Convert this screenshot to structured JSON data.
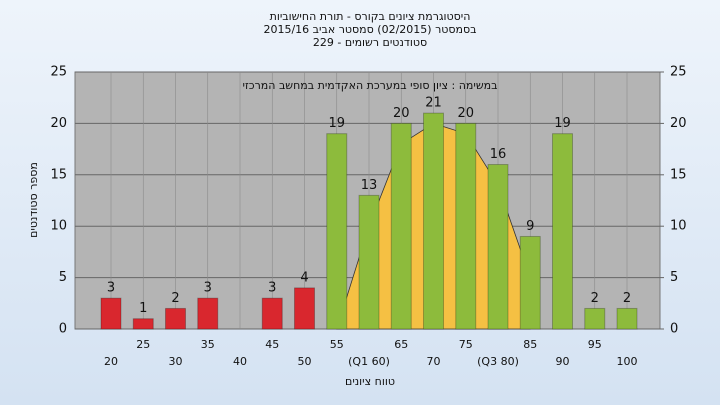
{
  "chart_data": {
    "type": "bar",
    "title": "היסטוגרמת ציונים בקורס - תורת החישוביות",
    "subtitle": "בסמסטר (02/2015) סמסטר אביב 2015/16",
    "subtitle2": "סטודנטים רשומים - 229",
    "annotation": "במשימה : ציון סופי במערכת האקדמית במחשב המרכזי",
    "y_label": "מספר סטודנטים",
    "x_label": "טווח ציונים",
    "categories": [
      "20",
      "25",
      "30",
      "35",
      "40",
      "45",
      "50",
      "55",
      "(Q1 60)",
      "65",
      "70",
      "75",
      "(Q3 80)",
      "85",
      "90",
      "95",
      "100"
    ],
    "values": [
      3,
      1,
      2,
      3,
      0,
      3,
      4,
      19,
      13,
      20,
      21,
      20,
      16,
      9,
      19,
      2,
      2
    ],
    "bar_colors": [
      "#d9272e",
      "#d9272e",
      "#d9272e",
      "#d9272e",
      "#d9272e",
      "#d9272e",
      "#d9272e",
      "#8dbb3c",
      "#8dbb3c",
      "#8dbb3c",
      "#8dbb3c",
      "#8dbb3c",
      "#8dbb3c",
      "#8dbb3c",
      "#8dbb3c",
      "#8dbb3c",
      "#8dbb3c"
    ],
    "area": {
      "color": "#f5c043",
      "values": [
        null,
        null,
        null,
        null,
        null,
        null,
        null,
        0,
        10,
        18,
        20,
        19,
        14,
        5,
        null,
        null,
        null
      ]
    },
    "ylim": [
      0,
      25
    ],
    "yticks": [
      0,
      5,
      10,
      15,
      20,
      25
    ],
    "y2lim": [
      0,
      25
    ],
    "y2ticks": [
      0,
      5,
      10,
      15,
      20,
      25
    ],
    "grid": true
  }
}
